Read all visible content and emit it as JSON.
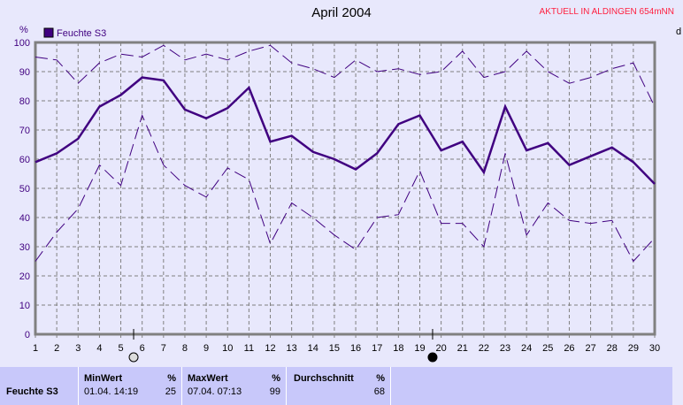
{
  "title": "April 2004",
  "location_label": "AKTUELL IN ALDINGEN 654mNN",
  "right_partial_label": "d",
  "colors": {
    "series": "#400080",
    "grid": "#808080",
    "background": "#e8e8fc",
    "panel": "#c8c8fa",
    "location": "#ff2040"
  },
  "chart_data": {
    "type": "line",
    "title": "April 2004",
    "ylabel": "%",
    "ylim": [
      0,
      100
    ],
    "yticks": [
      0,
      10,
      20,
      30,
      40,
      50,
      60,
      70,
      80,
      90,
      100
    ],
    "x": [
      1,
      2,
      3,
      4,
      5,
      6,
      7,
      8,
      9,
      10,
      11,
      12,
      13,
      14,
      15,
      16,
      17,
      18,
      19,
      20,
      21,
      22,
      23,
      24,
      25,
      26,
      27,
      28,
      29,
      30
    ],
    "grid": true,
    "legend": "top-left",
    "series": [
      {
        "name": "Feuchte S3",
        "role": "mean",
        "values": [
          59,
          62,
          67,
          78,
          82,
          88,
          87,
          77,
          74,
          77.5,
          84.5,
          66,
          68,
          62.5,
          60,
          56.5,
          62,
          72,
          75,
          63,
          66,
          55.5,
          78,
          63,
          65.5,
          58,
          61,
          64,
          59,
          51.5
        ]
      },
      {
        "role": "max",
        "values": [
          95,
          94,
          86,
          93,
          96,
          95,
          99,
          94,
          96,
          94,
          97,
          99,
          93,
          91,
          88,
          94,
          90,
          91,
          89,
          90,
          97,
          88,
          90,
          97,
          90,
          86,
          88,
          91,
          93,
          78
        ]
      },
      {
        "role": "min",
        "values": [
          25,
          35,
          43,
          58,
          51,
          75,
          58,
          51,
          47,
          57,
          53,
          31,
          45,
          40,
          34,
          29,
          40,
          41,
          56,
          38,
          38,
          30,
          62,
          34,
          45,
          39,
          38,
          39,
          25,
          33
        ]
      }
    ],
    "moon_phases": [
      {
        "day": 5.6,
        "phase": "full-moon"
      },
      {
        "day": 19.6,
        "phase": "new-moon"
      }
    ]
  },
  "panel": {
    "row_label": "Feuchte S3",
    "min": {
      "header": "MinWert",
      "unit": "%",
      "date": "01.04.  14:19",
      "value": "25"
    },
    "max": {
      "header": "MaxWert",
      "unit": "%",
      "date": "07.04.  07:13",
      "value": "99"
    },
    "avg": {
      "header": "Durchschnitt",
      "unit": "%",
      "value": "68"
    }
  }
}
